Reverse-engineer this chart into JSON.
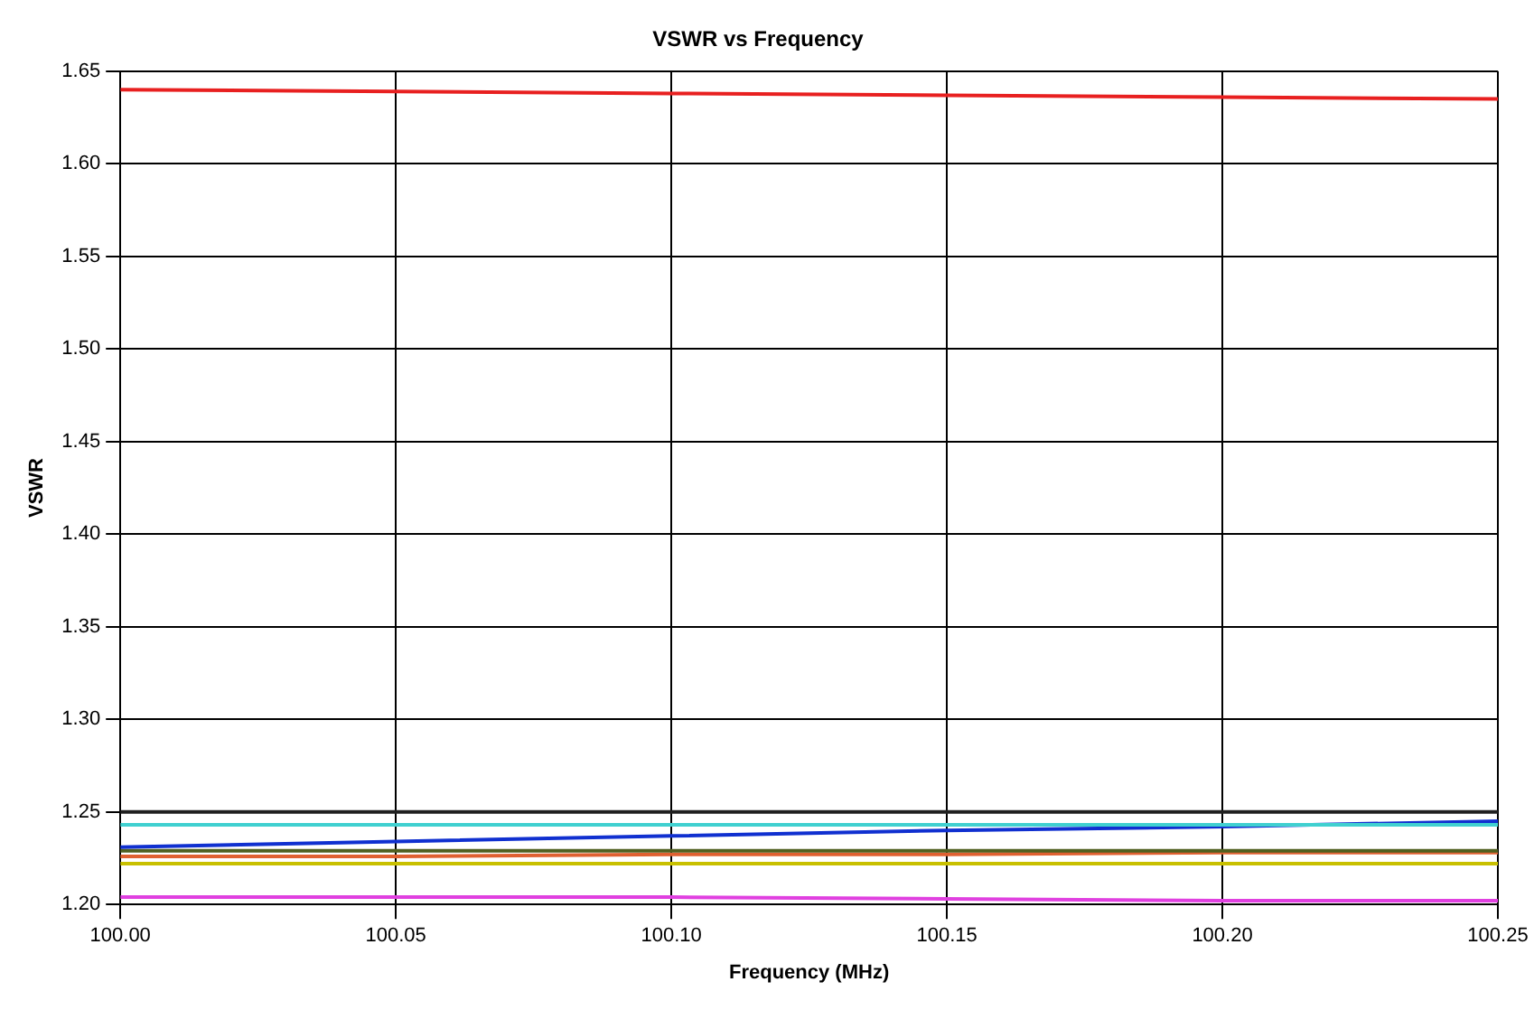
{
  "chart_data": {
    "type": "line",
    "title": "VSWR vs Frequency",
    "xlabel": "Frequency (MHz)",
    "ylabel": "VSWR",
    "x": [
      100.0,
      100.05,
      100.1,
      100.15,
      100.2,
      100.25
    ],
    "series": [
      {
        "color": "#e82020",
        "values": [
          1.64,
          1.639,
          1.638,
          1.637,
          1.636,
          1.635
        ]
      },
      {
        "color": "#202020",
        "values": [
          1.25,
          1.25,
          1.25,
          1.25,
          1.25,
          1.25
        ]
      },
      {
        "color": "#40d0d0",
        "values": [
          1.243,
          1.243,
          1.243,
          1.243,
          1.243,
          1.243
        ]
      },
      {
        "color": "#1030d0",
        "values": [
          1.231,
          1.234,
          1.237,
          1.24,
          1.242,
          1.245
        ]
      },
      {
        "color": "#506020",
        "values": [
          1.229,
          1.229,
          1.229,
          1.229,
          1.229,
          1.229
        ]
      },
      {
        "color": "#e06030",
        "values": [
          1.226,
          1.226,
          1.227,
          1.227,
          1.228,
          1.228
        ]
      },
      {
        "color": "#c8c000",
        "values": [
          1.222,
          1.222,
          1.222,
          1.222,
          1.222,
          1.222
        ]
      },
      {
        "color": "#e040e0",
        "values": [
          1.204,
          1.204,
          1.204,
          1.203,
          1.202,
          1.202
        ]
      }
    ],
    "xlim": [
      100.0,
      100.25
    ],
    "xticks": [
      {
        "value": 100.0,
        "label": "100.00"
      },
      {
        "value": 100.05,
        "label": "100.05"
      },
      {
        "value": 100.1,
        "label": "100.10"
      },
      {
        "value": 100.15,
        "label": "100.15"
      },
      {
        "value": 100.2,
        "label": "100.20"
      },
      {
        "value": 100.25,
        "label": "100.25"
      }
    ],
    "ylim": [
      1.2,
      1.65
    ],
    "yticks": [
      {
        "value": 1.2,
        "label": "1.20"
      },
      {
        "value": 1.25,
        "label": "1.25"
      },
      {
        "value": 1.3,
        "label": "1.30"
      },
      {
        "value": 1.35,
        "label": "1.35"
      },
      {
        "value": 1.4,
        "label": "1.40"
      },
      {
        "value": 1.45,
        "label": "1.45"
      },
      {
        "value": 1.5,
        "label": "1.50"
      },
      {
        "value": 1.55,
        "label": "1.55"
      },
      {
        "value": 1.6,
        "label": "1.60"
      },
      {
        "value": 1.65,
        "label": "1.65"
      }
    ],
    "grid": true,
    "legend": false,
    "marker": "none",
    "line_style": "solid"
  }
}
